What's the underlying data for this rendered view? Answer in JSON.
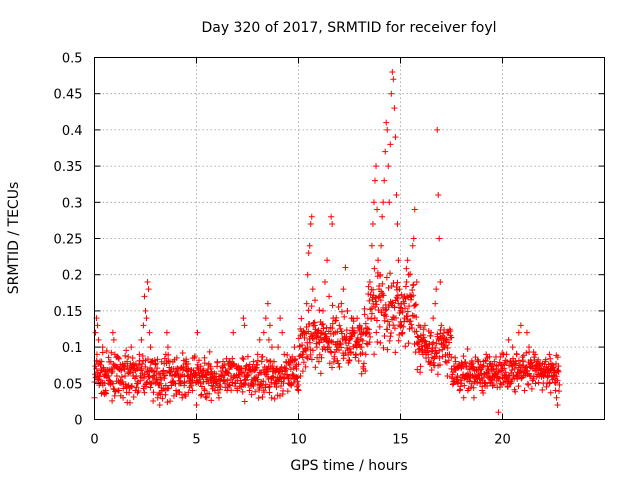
{
  "chart_data": {
    "type": "scatter",
    "title": "Day 320 of 2017, SRMTID for receiver foyl",
    "xlabel": "GPS time / hours",
    "ylabel": "SRMTID / TECUs",
    "xlim": [
      0,
      25
    ],
    "ylim": [
      0,
      0.5
    ],
    "xticks": [
      0,
      5,
      10,
      15,
      20
    ],
    "xtick_labels": [
      "0",
      "5",
      "10",
      "15",
      "20"
    ],
    "yticks": [
      0,
      0.05,
      0.1,
      0.15,
      0.2,
      0.25,
      0.3,
      0.35,
      0.4,
      0.45,
      0.5
    ],
    "ytick_labels": [
      "0",
      "0.05",
      "0.1",
      "0.15",
      "0.2",
      "0.25",
      "0.3",
      "0.35",
      "0.4",
      "0.45",
      "0.5"
    ],
    "grid": true,
    "marker": "+",
    "color": "#ff0000",
    "series": [
      {
        "name": "SRMTID",
        "points": [
          [
            0.0,
            0.03
          ],
          [
            0.05,
            0.12
          ],
          [
            0.1,
            0.14
          ],
          [
            0.12,
            0.09
          ],
          [
            0.15,
            0.13
          ],
          [
            0.2,
            0.11
          ],
          [
            0.25,
            0.06
          ],
          [
            0.3,
            0.05
          ],
          [
            0.35,
            0.08
          ],
          [
            0.4,
            0.1
          ],
          [
            0.45,
            0.07
          ],
          [
            0.5,
            0.05
          ],
          [
            0.55,
            0.04
          ],
          [
            0.6,
            0.06
          ],
          [
            0.7,
            0.05
          ],
          [
            0.8,
            0.08
          ],
          [
            0.85,
            0.07
          ],
          [
            0.9,
            0.12
          ],
          [
            0.95,
            0.11
          ],
          [
            1.0,
            0.09
          ],
          [
            1.1,
            0.06
          ],
          [
            1.2,
            0.04
          ],
          [
            1.3,
            0.05
          ],
          [
            1.4,
            0.03
          ],
          [
            1.5,
            0.06
          ],
          [
            1.6,
            0.08
          ],
          [
            1.7,
            0.07
          ],
          [
            1.8,
            0.1
          ],
          [
            1.9,
            0.06
          ],
          [
            2.0,
            0.04
          ],
          [
            2.1,
            0.07
          ],
          [
            2.2,
            0.09
          ],
          [
            2.3,
            0.11
          ],
          [
            2.4,
            0.13
          ],
          [
            2.45,
            0.17
          ],
          [
            2.5,
            0.15
          ],
          [
            2.55,
            0.14
          ],
          [
            2.6,
            0.19
          ],
          [
            2.65,
            0.18
          ],
          [
            2.7,
            0.12
          ],
          [
            2.75,
            0.1
          ],
          [
            2.8,
            0.08
          ],
          [
            2.9,
            0.06
          ],
          [
            3.0,
            0.05
          ],
          [
            3.1,
            0.03
          ],
          [
            3.2,
            0.02
          ],
          [
            3.3,
            0.04
          ],
          [
            3.4,
            0.06
          ],
          [
            3.5,
            0.09
          ],
          [
            3.55,
            0.12
          ],
          [
            3.6,
            0.1
          ],
          [
            3.7,
            0.08
          ],
          [
            3.8,
            0.06
          ],
          [
            3.9,
            0.05
          ],
          [
            4.0,
            0.04
          ],
          [
            4.1,
            0.07
          ],
          [
            4.2,
            0.05
          ],
          [
            4.3,
            0.03
          ],
          [
            4.4,
            0.06
          ],
          [
            4.5,
            0.08
          ],
          [
            4.6,
            0.07
          ],
          [
            4.7,
            0.05
          ],
          [
            4.8,
            0.04
          ],
          [
            4.9,
            0.06
          ],
          [
            5.0,
            0.02
          ],
          [
            5.05,
            0.12
          ],
          [
            5.1,
            0.07
          ],
          [
            5.2,
            0.05
          ],
          [
            5.3,
            0.06
          ],
          [
            5.4,
            0.04
          ],
          [
            5.5,
            0.03
          ],
          [
            5.6,
            0.05
          ],
          [
            5.7,
            0.07
          ],
          [
            5.8,
            0.06
          ],
          [
            5.9,
            0.04
          ],
          [
            6.0,
            0.05
          ],
          [
            6.1,
            0.03
          ],
          [
            6.2,
            0.06
          ],
          [
            6.3,
            0.08
          ],
          [
            6.4,
            0.05
          ],
          [
            6.5,
            0.04
          ],
          [
            6.6,
            0.07
          ],
          [
            6.7,
            0.06
          ],
          [
            6.8,
            0.12
          ],
          [
            6.9,
            0.05
          ],
          [
            7.0,
            0.04
          ],
          [
            7.1,
            0.06
          ],
          [
            7.2,
            0.05
          ],
          [
            7.3,
            0.14
          ],
          [
            7.35,
            0.13
          ],
          [
            7.4,
            0.07
          ],
          [
            7.5,
            0.06
          ],
          [
            7.6,
            0.04
          ],
          [
            7.7,
            0.05
          ],
          [
            7.8,
            0.08
          ],
          [
            7.9,
            0.07
          ],
          [
            8.0,
            0.09
          ],
          [
            8.1,
            0.11
          ],
          [
            8.2,
            0.08
          ],
          [
            8.3,
            0.12
          ],
          [
            8.4,
            0.14
          ],
          [
            8.5,
            0.16
          ],
          [
            8.55,
            0.11
          ],
          [
            8.6,
            0.13
          ],
          [
            8.7,
            0.1
          ],
          [
            8.8,
            0.08
          ],
          [
            8.9,
            0.07
          ],
          [
            9.0,
            0.1
          ],
          [
            9.1,
            0.14
          ],
          [
            9.2,
            0.12
          ],
          [
            9.3,
            0.09
          ],
          [
            9.4,
            0.07
          ],
          [
            9.5,
            0.05
          ],
          [
            9.6,
            0.08
          ],
          [
            9.7,
            0.06
          ],
          [
            9.8,
            0.1
          ],
          [
            9.9,
            0.07
          ],
          [
            10.0,
            0.04
          ],
          [
            10.1,
            0.06
          ],
          [
            10.2,
            0.09
          ],
          [
            10.3,
            0.12
          ],
          [
            10.4,
            0.16
          ],
          [
            10.45,
            0.2
          ],
          [
            10.5,
            0.23
          ],
          [
            10.55,
            0.24
          ],
          [
            10.6,
            0.27
          ],
          [
            10.65,
            0.28
          ],
          [
            10.7,
            0.18
          ],
          [
            10.8,
            0.13
          ],
          [
            10.9,
            0.1
          ],
          [
            11.0,
            0.08
          ],
          [
            11.1,
            0.12
          ],
          [
            11.2,
            0.15
          ],
          [
            11.3,
            0.19
          ],
          [
            11.4,
            0.22
          ],
          [
            11.5,
            0.17
          ],
          [
            11.6,
            0.28
          ],
          [
            11.65,
            0.27
          ],
          [
            11.7,
            0.14
          ],
          [
            11.8,
            0.12
          ],
          [
            11.9,
            0.1
          ],
          [
            12.0,
            0.13
          ],
          [
            12.1,
            0.16
          ],
          [
            12.2,
            0.18
          ],
          [
            12.3,
            0.21
          ],
          [
            12.4,
            0.15
          ],
          [
            12.5,
            0.11
          ],
          [
            12.6,
            0.14
          ],
          [
            12.7,
            0.12
          ],
          [
            12.8,
            0.09
          ],
          [
            12.9,
            0.11
          ],
          [
            13.0,
            0.13
          ],
          [
            13.1,
            0.1
          ],
          [
            13.2,
            0.12
          ],
          [
            13.3,
            0.09
          ],
          [
            13.4,
            0.14
          ],
          [
            13.5,
            0.19
          ],
          [
            13.6,
            0.24
          ],
          [
            13.65,
            0.27
          ],
          [
            13.7,
            0.3
          ],
          [
            13.75,
            0.33
          ],
          [
            13.8,
            0.35
          ],
          [
            13.85,
            0.29
          ],
          [
            13.9,
            0.22
          ],
          [
            13.95,
            0.18
          ],
          [
            14.0,
            0.2
          ],
          [
            14.05,
            0.24
          ],
          [
            14.1,
            0.28
          ],
          [
            14.15,
            0.3
          ],
          [
            14.2,
            0.33
          ],
          [
            14.25,
            0.37
          ],
          [
            14.3,
            0.41
          ],
          [
            14.35,
            0.4
          ],
          [
            14.4,
            0.35
          ],
          [
            14.45,
            0.3
          ],
          [
            14.5,
            0.38
          ],
          [
            14.55,
            0.45
          ],
          [
            14.6,
            0.48
          ],
          [
            14.65,
            0.47
          ],
          [
            14.7,
            0.43
          ],
          [
            14.75,
            0.39
          ],
          [
            14.8,
            0.31
          ],
          [
            14.85,
            0.27
          ],
          [
            14.9,
            0.22
          ],
          [
            14.95,
            0.18
          ],
          [
            15.0,
            0.15
          ],
          [
            15.05,
            0.13
          ],
          [
            15.1,
            0.12
          ],
          [
            15.2,
            0.14
          ],
          [
            15.3,
            0.19
          ],
          [
            15.35,
            0.22
          ],
          [
            15.4,
            0.2
          ],
          [
            15.5,
            0.17
          ],
          [
            15.6,
            0.24
          ],
          [
            15.65,
            0.25
          ],
          [
            15.7,
            0.29
          ],
          [
            15.8,
            0.19
          ],
          [
            15.9,
            0.13
          ],
          [
            16.0,
            0.11
          ],
          [
            16.1,
            0.09
          ],
          [
            16.2,
            0.13
          ],
          [
            16.3,
            0.1
          ],
          [
            16.4,
            0.08
          ],
          [
            16.5,
            0.12
          ],
          [
            16.6,
            0.14
          ],
          [
            16.7,
            0.16
          ],
          [
            16.75,
            0.18
          ],
          [
            16.8,
            0.4
          ],
          [
            16.85,
            0.31
          ],
          [
            16.9,
            0.25
          ],
          [
            16.95,
            0.19
          ],
          [
            17.0,
            0.13
          ],
          [
            17.1,
            0.1
          ],
          [
            17.2,
            0.08
          ],
          [
            17.3,
            0.06
          ],
          [
            17.4,
            0.09
          ],
          [
            17.5,
            0.07
          ],
          [
            17.6,
            0.05
          ],
          [
            17.7,
            0.08
          ],
          [
            17.8,
            0.06
          ],
          [
            17.9,
            0.04
          ],
          [
            18.0,
            0.05
          ],
          [
            18.1,
            0.03
          ],
          [
            18.2,
            0.06
          ],
          [
            18.3,
            0.04
          ],
          [
            18.4,
            0.07
          ],
          [
            18.5,
            0.05
          ],
          [
            18.6,
            0.03
          ],
          [
            18.7,
            0.06
          ],
          [
            18.8,
            0.08
          ],
          [
            18.9,
            0.05
          ],
          [
            19.0,
            0.04
          ],
          [
            19.1,
            0.06
          ],
          [
            19.2,
            0.09
          ],
          [
            19.3,
            0.07
          ],
          [
            19.4,
            0.05
          ],
          [
            19.5,
            0.06
          ],
          [
            19.6,
            0.08
          ],
          [
            19.7,
            0.07
          ],
          [
            19.8,
            0.01
          ],
          [
            19.9,
            0.05
          ],
          [
            20.0,
            0.07
          ],
          [
            20.1,
            0.06
          ],
          [
            20.2,
            0.09
          ],
          [
            20.3,
            0.11
          ],
          [
            20.4,
            0.08
          ],
          [
            20.5,
            0.1
          ],
          [
            20.6,
            0.07
          ],
          [
            20.7,
            0.09
          ],
          [
            20.8,
            0.12
          ],
          [
            20.9,
            0.13
          ],
          [
            21.0,
            0.08
          ],
          [
            21.1,
            0.07
          ],
          [
            21.2,
            0.12
          ],
          [
            21.3,
            0.1
          ],
          [
            21.4,
            0.06
          ],
          [
            21.5,
            0.07
          ],
          [
            21.6,
            0.09
          ],
          [
            21.7,
            0.08
          ],
          [
            21.8,
            0.06
          ],
          [
            21.9,
            0.07
          ],
          [
            22.0,
            0.05
          ],
          [
            22.1,
            0.08
          ],
          [
            22.2,
            0.06
          ],
          [
            22.3,
            0.09
          ],
          [
            22.4,
            0.07
          ],
          [
            22.5,
            0.06
          ],
          [
            22.6,
            0.04
          ],
          [
            22.65,
            0.03
          ],
          [
            22.7,
            0.02
          ]
        ]
      }
    ],
    "background_noise": "Dense cloud of additional points: baseline ~0.03-0.10 from 0-10h, elevated 0.06-0.20 from 10-16h, baseline ~0.03-0.10 from 16-22.8h"
  }
}
